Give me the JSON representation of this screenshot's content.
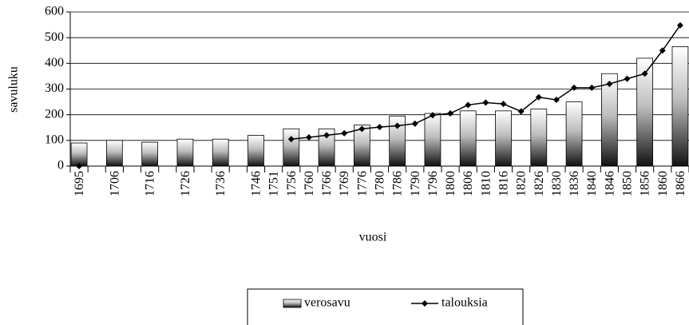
{
  "chart_data": {
    "type": "bar_line",
    "categories": [
      "1695",
      null,
      "1706",
      null,
      "1716",
      null,
      "1726",
      null,
      "1736",
      null,
      "1746",
      "1751",
      "1756",
      "1760",
      "1766",
      "1769",
      "1776",
      "1780",
      "1786",
      "1790",
      "1796",
      "1800",
      "1806",
      "1810",
      "1816",
      "1820",
      "1826",
      "1830",
      "1836",
      "1840",
      "1846",
      "1850",
      "1856",
      "1860",
      "1866"
    ],
    "series": [
      {
        "name": "verosavu",
        "type": "bar",
        "color": "#000000",
        "values": [
          90,
          null,
          100,
          null,
          93,
          null,
          105,
          null,
          105,
          null,
          120,
          null,
          145,
          null,
          145,
          null,
          160,
          null,
          195,
          null,
          205,
          null,
          215,
          null,
          215,
          null,
          222,
          null,
          250,
          null,
          360,
          null,
          420,
          null,
          465
        ]
      },
      {
        "name": "talouksia",
        "type": "line",
        "color": "#000000",
        "values": [
          0,
          null,
          null,
          null,
          null,
          null,
          null,
          null,
          null,
          null,
          null,
          null,
          105,
          112,
          120,
          128,
          145,
          152,
          157,
          165,
          198,
          205,
          238,
          247,
          242,
          213,
          268,
          258,
          305,
          305,
          320,
          340,
          360,
          450,
          548
        ]
      }
    ],
    "xlabel": "vuosi",
    "ylabel": "savuluku",
    "ylim": [
      0,
      600
    ],
    "yticks": [
      0,
      100,
      200,
      300,
      400,
      500,
      600
    ],
    "grid": true
  }
}
